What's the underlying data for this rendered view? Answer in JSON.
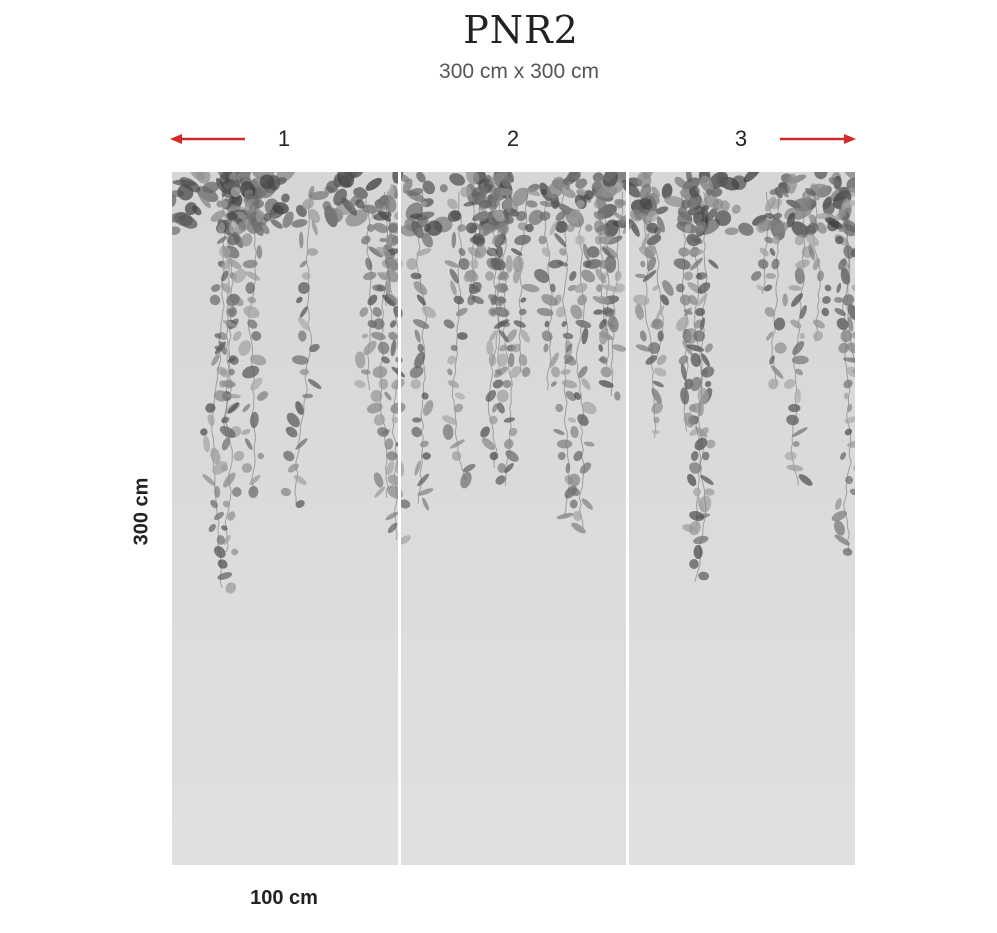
{
  "title": "PNR2",
  "subtitle": "300 cm x 300 cm",
  "panels": [
    {
      "label": "1"
    },
    {
      "label": "2"
    },
    {
      "label": "3"
    }
  ],
  "dimensions": {
    "height_label": "300 cm",
    "panel_width_label": "100 cm"
  },
  "colors": {
    "arrow": "#d42a2a",
    "panel_background": "#d9d9d9",
    "divider": "#ffffff"
  },
  "icons": {
    "left_arrow": "arrow-left-icon",
    "right_arrow": "arrow-right-icon"
  }
}
